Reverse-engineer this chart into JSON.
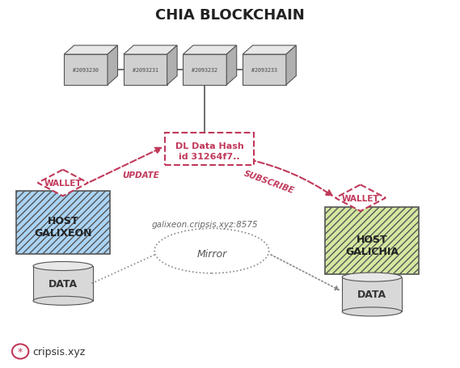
{
  "title": "CHIA BLOCKCHAIN",
  "bg_color": "#ffffff",
  "block_labels": [
    "#2093230",
    "#2093231",
    "#2093232",
    "#2093233"
  ],
  "block_color_face": "#d0d0d0",
  "block_color_top": "#e8e8e8",
  "block_color_side": "#b0b0b0",
  "block_color_edge": "#555555",
  "dl_box_color": "#c0395a",
  "dl_line1": "DL Data Hash",
  "dl_line2": "id 31264f7..",
  "update_text": "UPDATE",
  "subscribe_text": "SUBSCRIBE",
  "arrow_color": "#c0395a",
  "host1_label": "HOST\nGALIXEON",
  "host1_box_color": "#aad4f5",
  "host2_label": "HOST\nGALICHIA",
  "host2_box_color": "#d4e8a0",
  "wallet_color": "#c0395a",
  "wallet_text": "WALLET",
  "data_label": "DATA",
  "cylinder_color": "#d8d8d8",
  "mirror_text": "Mirror",
  "peer_text": "galixeon.cripsis.xyz:8575",
  "footer_text": "cripsis.xyz",
  "footer_color": "#c0395a",
  "dashed_line_color": "#888888"
}
